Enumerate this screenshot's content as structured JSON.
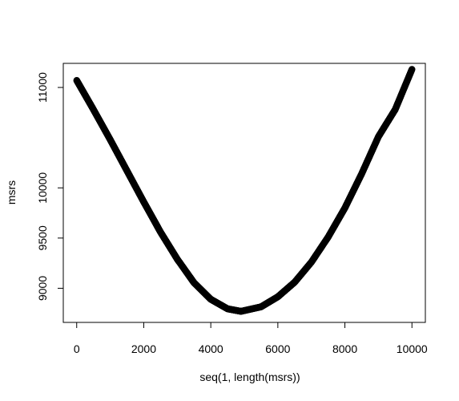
{
  "chart_data": {
    "type": "scatter",
    "xlabel": "seq(1, length(msrs))",
    "ylabel": "msrs",
    "xlim": [
      -400,
      10400
    ],
    "ylim": [
      8660,
      11240
    ],
    "xticks": [
      0,
      2000,
      4000,
      6000,
      8000,
      10000
    ],
    "yticks": [
      9000,
      9500,
      10000,
      11000
    ],
    "grid": false,
    "series": [
      {
        "points": [
          [
            1,
            11070
          ],
          [
            500,
            10780
          ],
          [
            1000,
            10480
          ],
          [
            1500,
            10170
          ],
          [
            2000,
            9860
          ],
          [
            2500,
            9560
          ],
          [
            3000,
            9290
          ],
          [
            3500,
            9055
          ],
          [
            4000,
            8890
          ],
          [
            4500,
            8795
          ],
          [
            4900,
            8770
          ],
          [
            5500,
            8815
          ],
          [
            6000,
            8915
          ],
          [
            6500,
            9060
          ],
          [
            7000,
            9260
          ],
          [
            7500,
            9510
          ],
          [
            8000,
            9800
          ],
          [
            8500,
            10140
          ],
          [
            9000,
            10510
          ],
          [
            9500,
            10780
          ],
          [
            10000,
            11180
          ]
        ]
      }
    ]
  }
}
